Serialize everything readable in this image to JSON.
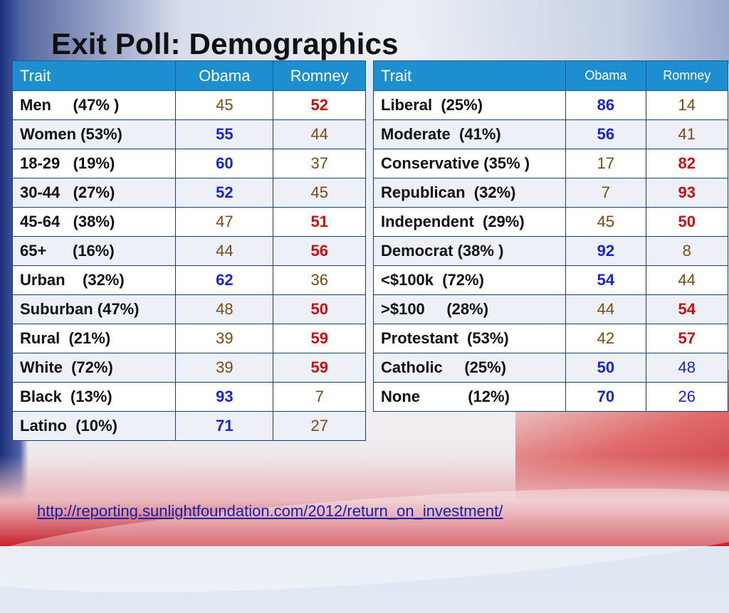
{
  "title": "Exit Poll: Demographics",
  "left_table": {
    "headers": [
      "Trait",
      "Obama",
      "Romney"
    ],
    "rows": [
      {
        "trait": "Men     (47% )",
        "obama": "45",
        "romney": "52"
      },
      {
        "trait": "Women (53%)",
        "obama": "55",
        "romney": "44"
      },
      {
        "trait": "18-29   (19%)",
        "obama": "60",
        "romney": "37"
      },
      {
        "trait": "30-44   (27%)",
        "obama": "52",
        "romney": "45"
      },
      {
        "trait": "45-64   (38%)",
        "obama": "47",
        "romney": "51"
      },
      {
        "trait": "65+      (16%)",
        "obama": "44",
        "romney": "56"
      },
      {
        "trait": "Urban    (32%)",
        "obama": "62",
        "romney": "36"
      },
      {
        "trait": "Suburban (47%)",
        "obama": "48",
        "romney": "50"
      },
      {
        "trait": "Rural  (21%)",
        "obama": "39",
        "romney": "59"
      },
      {
        "trait": "White  (72%)",
        "obama": "39",
        "romney": "59"
      },
      {
        "trait": "Black  (13%)",
        "obama": "93",
        "romney": "7"
      },
      {
        "trait": "Latino  (10%)",
        "obama": "71",
        "romney": "27"
      }
    ]
  },
  "right_table": {
    "headers": [
      "Trait",
      "Obama",
      "Romney"
    ],
    "rows": [
      {
        "trait": "Liberal  (25%)",
        "obama": "86",
        "romney": "14"
      },
      {
        "trait": "Moderate  (41%)",
        "obama": "56",
        "romney": "41"
      },
      {
        "trait": "Conservative (35% )",
        "obama": "17",
        "romney": "82"
      },
      {
        "trait": "Republican  (32%)",
        "obama": "7",
        "romney": "93"
      },
      {
        "trait": "Independent  (29%)",
        "obama": "45",
        "romney": "50"
      },
      {
        "trait": "Democrat (38% )",
        "obama": "92",
        "romney": "8"
      },
      {
        "trait": "<$100k  (72%)",
        "obama": "54",
        "romney": "44"
      },
      {
        "trait": ">$100     (28%)",
        "obama": "44",
        "romney": "54"
      },
      {
        "trait": "Protestant  (53%)",
        "obama": "42",
        "romney": "57"
      },
      {
        "trait": "Catholic     (25%)",
        "obama": "50",
        "romney": "48"
      },
      {
        "trait": "None           (12%)",
        "obama": "70",
        "romney": "26"
      }
    ]
  },
  "source_url": "http://reporting.sunlightfoundation.com/2012/return_on_investment/",
  "colors": {
    "header_blue": "#1d8fd0",
    "winner_blue": "#1a22d6",
    "winner_red": "#d00d0d",
    "loser_brown": "#7a4a10"
  }
}
